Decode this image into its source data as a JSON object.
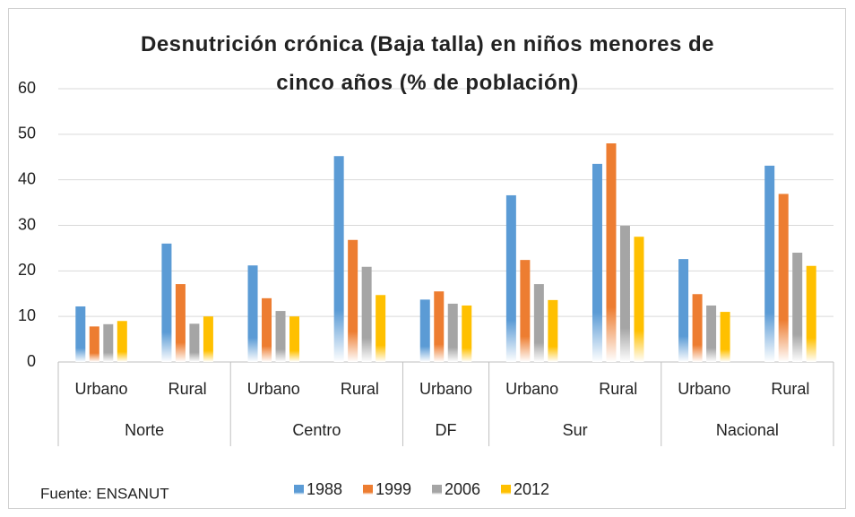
{
  "chart_data": {
    "type": "bar",
    "title": "Desnutrición crónica (Baja talla) en niños menores de cinco años (% de población)",
    "groups": [
      {
        "name": "Norte",
        "categories": [
          "Urbano",
          "Rural"
        ]
      },
      {
        "name": "Centro",
        "categories": [
          "Urbano",
          "Rural"
        ]
      },
      {
        "name": "DF",
        "categories": [
          "Urbano"
        ]
      },
      {
        "name": "Sur",
        "categories": [
          "Urbano",
          "Rural"
        ]
      },
      {
        "name": "Nacional",
        "categories": [
          "Urbano",
          "Rural"
        ]
      }
    ],
    "series": [
      {
        "name": "1988",
        "color": "#5b9bd5",
        "values": [
          12.2,
          26,
          21.2,
          45.2,
          13.7,
          36.6,
          43.5,
          22.6,
          43.1
        ]
      },
      {
        "name": "1999",
        "color": "#ed7d31",
        "values": [
          7.8,
          17.1,
          14,
          26.8,
          15.5,
          22.4,
          48,
          14.9,
          36.9
        ]
      },
      {
        "name": "2006",
        "color": "#a5a5a5",
        "values": [
          8.3,
          8.4,
          11.2,
          20.9,
          12.8,
          17.1,
          29.9,
          12.4,
          24
        ]
      },
      {
        "name": "2012",
        "color": "#ffc000",
        "values": [
          9,
          10,
          10,
          14.7,
          12.4,
          13.6,
          27.5,
          11,
          21.1
        ]
      }
    ],
    "ylim": [
      0,
      60
    ],
    "yticks": [
      0,
      10,
      20,
      30,
      40,
      50,
      60
    ],
    "grid": true,
    "source": "Fuente: ENSANUT"
  }
}
